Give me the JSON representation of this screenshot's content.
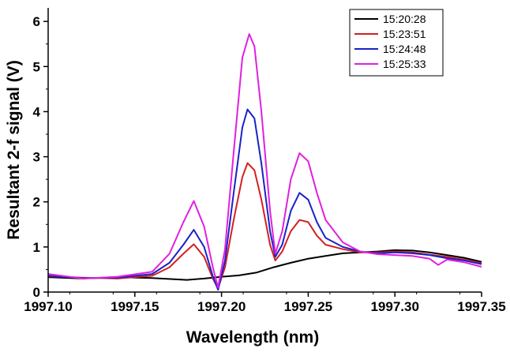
{
  "chart_data": {
    "type": "line",
    "title": "",
    "xlabel": "Wavelength (nm)",
    "ylabel": "Resultant 2-f signal (V)",
    "xlim": [
      1997.1,
      1997.35
    ],
    "ylim": [
      0,
      6.3
    ],
    "x_ticks": [
      "1997.10",
      "1997.15",
      "1997.20",
      "1997.25",
      "1997.30",
      "1997.35"
    ],
    "y_ticks": [
      "0",
      "1",
      "2",
      "3",
      "4",
      "5",
      "6"
    ],
    "grid": false,
    "legend_position": "top-right",
    "series": [
      {
        "name": "15:20:28",
        "color": "#000000",
        "points": [
          [
            1997.1,
            0.33
          ],
          [
            1997.12,
            0.3
          ],
          [
            1997.14,
            0.33
          ],
          [
            1997.16,
            0.31
          ],
          [
            1997.18,
            0.27
          ],
          [
            1997.19,
            0.3
          ],
          [
            1997.2,
            0.34
          ],
          [
            1997.21,
            0.37
          ],
          [
            1997.22,
            0.43
          ],
          [
            1997.23,
            0.55
          ],
          [
            1997.24,
            0.65
          ],
          [
            1997.25,
            0.74
          ],
          [
            1997.26,
            0.8
          ],
          [
            1997.27,
            0.86
          ],
          [
            1997.28,
            0.88
          ],
          [
            1997.29,
            0.9
          ],
          [
            1997.3,
            0.93
          ],
          [
            1997.31,
            0.92
          ],
          [
            1997.32,
            0.88
          ],
          [
            1997.33,
            0.82
          ],
          [
            1997.34,
            0.76
          ],
          [
            1997.35,
            0.67
          ]
        ]
      },
      {
        "name": "15:23:51",
        "color": "#d42020",
        "points": [
          [
            1997.1,
            0.35
          ],
          [
            1997.12,
            0.32
          ],
          [
            1997.14,
            0.3
          ],
          [
            1997.16,
            0.36
          ],
          [
            1997.17,
            0.55
          ],
          [
            1997.178,
            0.85
          ],
          [
            1997.184,
            1.06
          ],
          [
            1997.19,
            0.78
          ],
          [
            1997.195,
            0.3
          ],
          [
            1997.198,
            0.08
          ],
          [
            1997.202,
            0.55
          ],
          [
            1997.207,
            1.6
          ],
          [
            1997.212,
            2.55
          ],
          [
            1997.215,
            2.86
          ],
          [
            1997.219,
            2.7
          ],
          [
            1997.223,
            2.05
          ],
          [
            1997.228,
            1.05
          ],
          [
            1997.231,
            0.7
          ],
          [
            1997.235,
            0.9
          ],
          [
            1997.24,
            1.35
          ],
          [
            1997.245,
            1.6
          ],
          [
            1997.25,
            1.55
          ],
          [
            1997.255,
            1.25
          ],
          [
            1997.26,
            1.05
          ],
          [
            1997.27,
            0.95
          ],
          [
            1997.28,
            0.88
          ],
          [
            1997.29,
            0.88
          ],
          [
            1997.3,
            0.9
          ],
          [
            1997.31,
            0.88
          ],
          [
            1997.32,
            0.83
          ],
          [
            1997.33,
            0.78
          ],
          [
            1997.34,
            0.72
          ],
          [
            1997.35,
            0.64
          ]
        ]
      },
      {
        "name": "15:24:48",
        "color": "#1a22c8",
        "points": [
          [
            1997.1,
            0.36
          ],
          [
            1997.12,
            0.31
          ],
          [
            1997.14,
            0.32
          ],
          [
            1997.16,
            0.4
          ],
          [
            1997.17,
            0.65
          ],
          [
            1997.178,
            1.05
          ],
          [
            1997.184,
            1.38
          ],
          [
            1997.19,
            1.0
          ],
          [
            1997.195,
            0.35
          ],
          [
            1997.198,
            0.05
          ],
          [
            1997.202,
            0.7
          ],
          [
            1997.207,
            2.2
          ],
          [
            1997.212,
            3.65
          ],
          [
            1997.215,
            4.05
          ],
          [
            1997.219,
            3.85
          ],
          [
            1997.223,
            2.85
          ],
          [
            1997.228,
            1.35
          ],
          [
            1997.231,
            0.78
          ],
          [
            1997.235,
            1.05
          ],
          [
            1997.24,
            1.8
          ],
          [
            1997.245,
            2.2
          ],
          [
            1997.25,
            2.05
          ],
          [
            1997.255,
            1.55
          ],
          [
            1997.26,
            1.2
          ],
          [
            1997.27,
            1.0
          ],
          [
            1997.28,
            0.9
          ],
          [
            1997.29,
            0.86
          ],
          [
            1997.3,
            0.88
          ],
          [
            1997.31,
            0.86
          ],
          [
            1997.32,
            0.82
          ],
          [
            1997.33,
            0.75
          ],
          [
            1997.34,
            0.7
          ],
          [
            1997.35,
            0.62
          ]
        ]
      },
      {
        "name": "15:25:33",
        "color": "#e020e0",
        "points": [
          [
            1997.1,
            0.4
          ],
          [
            1997.12,
            0.3
          ],
          [
            1997.14,
            0.34
          ],
          [
            1997.16,
            0.45
          ],
          [
            1997.17,
            0.85
          ],
          [
            1997.178,
            1.55
          ],
          [
            1997.184,
            2.02
          ],
          [
            1997.19,
            1.45
          ],
          [
            1997.195,
            0.55
          ],
          [
            1997.198,
            0.1
          ],
          [
            1997.202,
            0.95
          ],
          [
            1997.207,
            3.1
          ],
          [
            1997.212,
            5.2
          ],
          [
            1997.216,
            5.72
          ],
          [
            1997.219,
            5.45
          ],
          [
            1997.223,
            4.0
          ],
          [
            1997.228,
            1.8
          ],
          [
            1997.231,
            0.85
          ],
          [
            1997.235,
            1.35
          ],
          [
            1997.24,
            2.5
          ],
          [
            1997.245,
            3.08
          ],
          [
            1997.25,
            2.9
          ],
          [
            1997.255,
            2.2
          ],
          [
            1997.26,
            1.6
          ],
          [
            1997.27,
            1.1
          ],
          [
            1997.28,
            0.9
          ],
          [
            1997.29,
            0.84
          ],
          [
            1997.3,
            0.82
          ],
          [
            1997.31,
            0.8
          ],
          [
            1997.32,
            0.74
          ],
          [
            1997.325,
            0.6
          ],
          [
            1997.33,
            0.72
          ],
          [
            1997.34,
            0.66
          ],
          [
            1997.35,
            0.56
          ]
        ]
      }
    ]
  }
}
